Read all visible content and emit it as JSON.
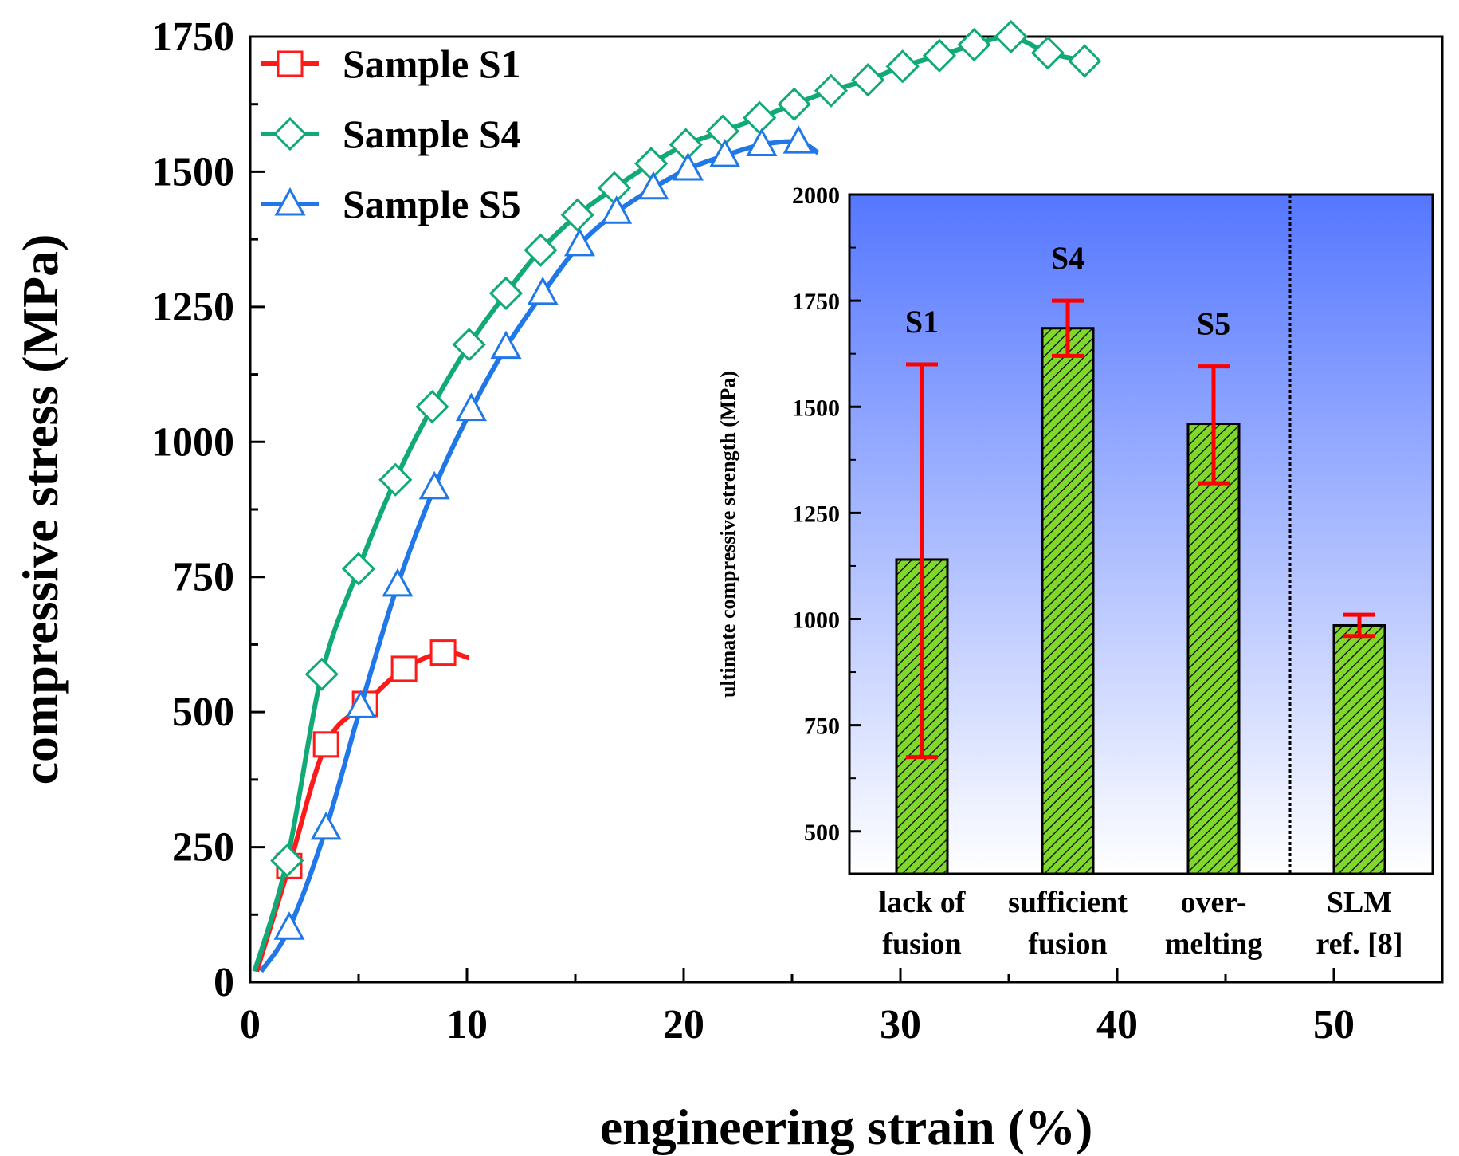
{
  "chart_data": [
    {
      "type": "line",
      "xlabel": "engineering strain (%)",
      "ylabel": "compressive stress (MPa)",
      "xlim": [
        0,
        55
      ],
      "ylim": [
        0,
        1750
      ],
      "xticks": [
        0,
        10,
        20,
        30,
        40,
        50
      ],
      "yticks": [
        0,
        250,
        500,
        750,
        1000,
        1250,
        1500,
        1750
      ],
      "legend_position": "top-left",
      "series": [
        {
          "name": "Sample S1",
          "color": "#ff1a1a",
          "marker": "square",
          "x": [
            0.3,
            1.8,
            3.5,
            5.3,
            7.1,
            8.9,
            10.1
          ],
          "y": [
            20,
            215,
            440,
            515,
            580,
            610,
            600
          ]
        },
        {
          "name": "Sample S4",
          "color": "#11aa77",
          "marker": "diamond",
          "x": [
            0.2,
            1.7,
            3.3,
            5.0,
            6.7,
            8.4,
            10.1,
            11.8,
            13.4,
            15.1,
            16.8,
            18.5,
            20.1,
            21.8,
            23.5,
            25.1,
            26.8,
            28.5,
            30.1,
            31.8,
            33.4,
            35.1,
            36.8,
            38.5,
            39.0
          ],
          "y": [
            20,
            225,
            570,
            765,
            930,
            1065,
            1180,
            1275,
            1355,
            1420,
            1470,
            1515,
            1550,
            1575,
            1600,
            1625,
            1650,
            1670,
            1695,
            1715,
            1735,
            1750,
            1720,
            1705,
            1695
          ]
        },
        {
          "name": "Sample S5",
          "color": "#1f77e8",
          "marker": "triangle",
          "x": [
            0.5,
            1.8,
            3.5,
            5.1,
            6.8,
            8.5,
            10.2,
            11.8,
            13.5,
            15.2,
            16.9,
            18.6,
            20.2,
            21.9,
            23.6,
            25.3,
            26.2
          ],
          "y": [
            20,
            100,
            285,
            510,
            735,
            915,
            1060,
            1175,
            1275,
            1365,
            1425,
            1470,
            1505,
            1530,
            1550,
            1555,
            1535
          ]
        }
      ]
    },
    {
      "type": "bar",
      "ylabel": "ultimate compressive strength  (MPa)",
      "ylim": [
        400,
        2000
      ],
      "yticks": [
        500,
        750,
        1000,
        1250,
        1500,
        1750,
        2000
      ],
      "categories": [
        [
          "lack of",
          "fusion"
        ],
        [
          "sufficient",
          "fusion"
        ],
        [
          "over-",
          "melting"
        ],
        [
          "SLM",
          "ref. [8]"
        ]
      ],
      "bar_labels": [
        "S1",
        "S4",
        "S5",
        ""
      ],
      "values": [
        1140,
        1685,
        1460,
        985
      ],
      "error_low": [
        675,
        1620,
        1320,
        960
      ],
      "error_high": [
        1600,
        1750,
        1595,
        1010
      ],
      "bar_color": "#7fd82a",
      "error_color": "#ff0000",
      "background_gradient": [
        "#5577ff",
        "#ffffff"
      ]
    }
  ]
}
